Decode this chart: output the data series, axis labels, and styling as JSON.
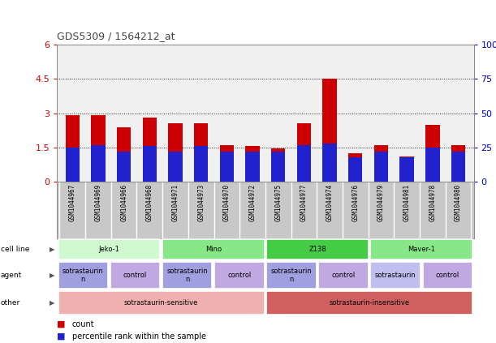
{
  "title": "GDS5309 / 1564212_at",
  "samples": [
    "GSM1044967",
    "GSM1044969",
    "GSM1044966",
    "GSM1044968",
    "GSM1044971",
    "GSM1044973",
    "GSM1044970",
    "GSM1044972",
    "GSM1044975",
    "GSM1044977",
    "GSM1044974",
    "GSM1044976",
    "GSM1044979",
    "GSM1044981",
    "GSM1044978",
    "GSM1044980"
  ],
  "red_values": [
    2.9,
    2.9,
    2.4,
    2.8,
    2.55,
    2.55,
    1.6,
    1.55,
    1.45,
    2.55,
    4.5,
    1.25,
    1.6,
    1.1,
    2.5,
    1.6
  ],
  "blue_pct": [
    25,
    27,
    22,
    26,
    22,
    26,
    22,
    22,
    22,
    27,
    28,
    18,
    22,
    18,
    25,
    22
  ],
  "ylim_left": [
    0,
    6
  ],
  "ylim_right": [
    0,
    100
  ],
  "yticks_left": [
    0,
    1.5,
    3.0,
    4.5,
    6.0
  ],
  "yticks_right": [
    0,
    25,
    50,
    75,
    100
  ],
  "ytick_labels_left": [
    "0",
    "1.5",
    "3",
    "4.5",
    "6"
  ],
  "ytick_labels_right": [
    "0",
    "25",
    "50",
    "75",
    "100%"
  ],
  "grid_lines": [
    1.5,
    3.0,
    4.5
  ],
  "cell_line_groups": [
    {
      "text": "Jeko-1",
      "start": 0,
      "end": 4,
      "color": "#cffacf"
    },
    {
      "text": "Mino",
      "start": 4,
      "end": 8,
      "color": "#88e888"
    },
    {
      "text": "Z138",
      "start": 8,
      "end": 12,
      "color": "#44cc44"
    },
    {
      "text": "Maver-1",
      "start": 12,
      "end": 16,
      "color": "#88e888"
    }
  ],
  "agent_groups": [
    {
      "text": "sotrastaurin\nn",
      "start": 0,
      "end": 2,
      "color": "#a0a0e0"
    },
    {
      "text": "control",
      "start": 2,
      "end": 4,
      "color": "#c0a8e0"
    },
    {
      "text": "sotrastaurin\nn",
      "start": 4,
      "end": 6,
      "color": "#a0a0e0"
    },
    {
      "text": "control",
      "start": 6,
      "end": 8,
      "color": "#c0a8e0"
    },
    {
      "text": "sotrastaurin\nn",
      "start": 8,
      "end": 10,
      "color": "#a0a0e0"
    },
    {
      "text": "control",
      "start": 10,
      "end": 12,
      "color": "#c0a8e0"
    },
    {
      "text": "sotrastaurin",
      "start": 12,
      "end": 14,
      "color": "#c0c0f0"
    },
    {
      "text": "control",
      "start": 14,
      "end": 16,
      "color": "#c0a8e0"
    }
  ],
  "other_groups": [
    {
      "text": "sotrastaurin-sensitive",
      "start": 0,
      "end": 8,
      "color": "#f0b0b0"
    },
    {
      "text": "sotrastaurin-insensitive",
      "start": 8,
      "end": 16,
      "color": "#d06060"
    }
  ],
  "bar_color": "#cc0000",
  "blue_color": "#2222cc",
  "axis_bg": "#f0f0f0",
  "label_bg": "#c8c8c8",
  "grid_color": "#222222",
  "left_axis_color": "#cc0000",
  "right_axis_color": "#0000cc"
}
